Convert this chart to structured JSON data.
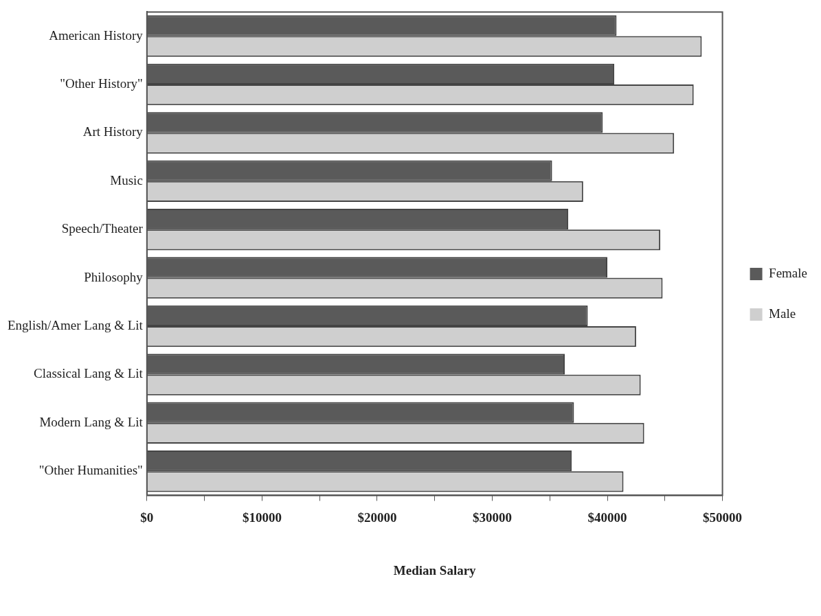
{
  "chart_data": {
    "type": "bar",
    "orientation": "horizontal",
    "xlabel": "Median Salary",
    "categories": [
      "American History",
      "\"Other History\"",
      "Art History",
      "Music",
      "Speech/Theater",
      "Philosophy",
      "English/Amer Lang & Lit",
      "Classical Lang & Lit",
      "Modern Lang & Lit",
      "\"Other Humanities\""
    ],
    "series": [
      {
        "name": "Female",
        "color": "#5a5a5a",
        "values": [
          40800,
          40600,
          39600,
          35200,
          36600,
          40000,
          38300,
          36300,
          37100,
          36900
        ]
      },
      {
        "name": "Male",
        "color": "#cfcfcf",
        "values": [
          48200,
          47500,
          45800,
          37900,
          44600,
          44800,
          42500,
          42900,
          43200,
          41400
        ]
      }
    ],
    "xlim": [
      0,
      50000
    ],
    "xticks": [
      {
        "value": 0,
        "label": "$0"
      },
      {
        "value": 5000,
        "label": null
      },
      {
        "value": 10000,
        "label": "$10000"
      },
      {
        "value": 15000,
        "label": null
      },
      {
        "value": 20000,
        "label": "$20000"
      },
      {
        "value": 25000,
        "label": null
      },
      {
        "value": 30000,
        "label": "$30000"
      },
      {
        "value": 35000,
        "label": null
      },
      {
        "value": 40000,
        "label": "$40000"
      },
      {
        "value": 45000,
        "label": null
      },
      {
        "value": 50000,
        "label": "$50000"
      }
    ],
    "grid": false,
    "legend": "right"
  }
}
